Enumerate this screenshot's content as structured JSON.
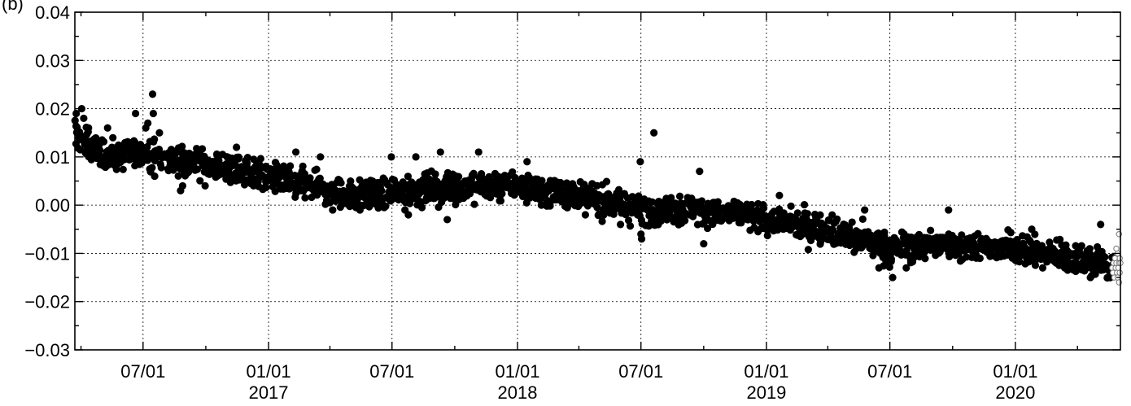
{
  "chart_data": {
    "type": "scatter",
    "title": "",
    "xlabel": "",
    "ylabel": "(b)",
    "xlim": [
      "2016-03-23",
      "2020-06-03"
    ],
    "ylim": [
      -0.03,
      0.04
    ],
    "grid": true,
    "y_ticks": [
      "0.04",
      "0.03",
      "0.02",
      "0.01",
      "0.00",
      "−0.01",
      "−0.02",
      "−0.03"
    ],
    "y_tick_values": [
      0.04,
      0.03,
      0.02,
      0.01,
      0.0,
      -0.01,
      -0.02,
      -0.03
    ],
    "x_ticks": [
      {
        "date": "2016-07-01",
        "label": "07/01",
        "year": ""
      },
      {
        "date": "2017-01-01",
        "label": "01/01",
        "year": "2017"
      },
      {
        "date": "2017-07-01",
        "label": "07/01",
        "year": ""
      },
      {
        "date": "2018-01-01",
        "label": "01/01",
        "year": "2018"
      },
      {
        "date": "2018-07-01",
        "label": "07/01",
        "year": ""
      },
      {
        "date": "2019-01-01",
        "label": "01/01",
        "year": "2019"
      },
      {
        "date": "2019-07-01",
        "label": "07/01",
        "year": ""
      },
      {
        "date": "2020-01-01",
        "label": "01/01",
        "year": "2020"
      }
    ],
    "minor_x_ticks": [
      "2016-04-01",
      "2016-10-01",
      "2017-04-01",
      "2017-10-01",
      "2018-04-01",
      "2018-10-01",
      "2019-04-01",
      "2019-10-01",
      "2020-04-01"
    ],
    "series": [
      {
        "marker": "filled-circle",
        "color": "#000000",
        "trend": [
          {
            "x": "2016-03-23",
            "y": 0.015
          },
          {
            "x": "2016-05-01",
            "y": 0.01
          },
          {
            "x": "2016-07-01",
            "y": 0.011
          },
          {
            "x": "2016-09-01",
            "y": 0.009
          },
          {
            "x": "2016-12-01",
            "y": 0.007
          },
          {
            "x": "2017-03-01",
            "y": 0.004
          },
          {
            "x": "2017-05-01",
            "y": 0.002
          },
          {
            "x": "2017-08-01",
            "y": 0.003
          },
          {
            "x": "2017-11-01",
            "y": 0.004
          },
          {
            "x": "2018-01-01",
            "y": 0.004
          },
          {
            "x": "2018-04-01",
            "y": 0.002
          },
          {
            "x": "2018-07-01",
            "y": -0.001
          },
          {
            "x": "2018-10-01",
            "y": -0.001
          },
          {
            "x": "2019-01-01",
            "y": -0.003
          },
          {
            "x": "2019-04-01",
            "y": -0.005
          },
          {
            "x": "2019-07-01",
            "y": -0.009
          },
          {
            "x": "2019-10-01",
            "y": -0.008
          },
          {
            "x": "2020-01-01",
            "y": -0.009
          },
          {
            "x": "2020-04-01",
            "y": -0.011
          },
          {
            "x": "2020-05-25",
            "y": -0.013
          }
        ],
        "spread": 0.0022,
        "outliers": [
          {
            "x": "2016-03-25",
            "y": 0.019
          },
          {
            "x": "2016-04-02",
            "y": 0.02
          },
          {
            "x": "2016-04-05",
            "y": 0.018
          },
          {
            "x": "2016-04-12",
            "y": 0.016
          },
          {
            "x": "2016-05-10",
            "y": 0.016
          },
          {
            "x": "2016-06-20",
            "y": 0.019
          },
          {
            "x": "2016-07-05",
            "y": 0.016
          },
          {
            "x": "2016-07-08",
            "y": 0.017
          },
          {
            "x": "2016-07-15",
            "y": 0.023
          },
          {
            "x": "2016-07-16",
            "y": 0.019
          },
          {
            "x": "2016-07-25",
            "y": 0.015
          },
          {
            "x": "2016-07-18",
            "y": 0.006
          },
          {
            "x": "2016-08-25",
            "y": 0.003
          },
          {
            "x": "2016-08-28",
            "y": 0.004
          },
          {
            "x": "2016-09-30",
            "y": 0.004
          },
          {
            "x": "2016-11-15",
            "y": 0.012
          },
          {
            "x": "2016-12-10",
            "y": 0.004
          },
          {
            "x": "2017-02-10",
            "y": 0.011
          },
          {
            "x": "2017-03-18",
            "y": 0.01
          },
          {
            "x": "2017-04-05",
            "y": -0.001
          },
          {
            "x": "2017-05-15",
            "y": -0.001
          },
          {
            "x": "2017-06-30",
            "y": 0.01
          },
          {
            "x": "2017-07-20",
            "y": -0.001
          },
          {
            "x": "2017-07-25",
            "y": -0.002
          },
          {
            "x": "2017-08-05",
            "y": 0.01
          },
          {
            "x": "2017-09-10",
            "y": 0.011
          },
          {
            "x": "2017-09-20",
            "y": -0.003
          },
          {
            "x": "2017-11-05",
            "y": 0.011
          },
          {
            "x": "2018-01-15",
            "y": 0.009
          },
          {
            "x": "2018-02-05",
            "y": 0.0
          },
          {
            "x": "2018-06-01",
            "y": -0.004
          },
          {
            "x": "2018-06-30",
            "y": 0.009
          },
          {
            "x": "2018-07-01",
            "y": -0.006
          },
          {
            "x": "2018-07-02",
            "y": -0.007
          },
          {
            "x": "2018-07-20",
            "y": 0.015
          },
          {
            "x": "2018-09-25",
            "y": 0.007
          },
          {
            "x": "2018-10-01",
            "y": -0.008
          },
          {
            "x": "2019-01-20",
            "y": 0.002
          },
          {
            "x": "2019-05-25",
            "y": -0.001
          },
          {
            "x": "2019-06-15",
            "y": -0.013
          },
          {
            "x": "2019-07-05",
            "y": -0.015
          },
          {
            "x": "2019-07-25",
            "y": -0.013
          },
          {
            "x": "2019-09-25",
            "y": -0.001
          },
          {
            "x": "2020-01-25",
            "y": -0.005
          },
          {
            "x": "2020-02-10",
            "y": -0.013
          },
          {
            "x": "2020-04-20",
            "y": -0.015
          },
          {
            "x": "2020-05-05",
            "y": -0.004
          },
          {
            "x": "2020-05-15",
            "y": -0.015
          }
        ]
      },
      {
        "marker": "open-circle",
        "color": "#808080",
        "points": [
          {
            "x": "2020-05-22",
            "y": -0.013
          },
          {
            "x": "2020-05-23",
            "y": -0.014
          },
          {
            "x": "2020-05-24",
            "y": -0.012
          },
          {
            "x": "2020-05-25",
            "y": -0.015
          },
          {
            "x": "2020-05-26",
            "y": -0.011
          },
          {
            "x": "2020-05-27",
            "y": -0.013
          },
          {
            "x": "2020-05-28",
            "y": -0.012
          },
          {
            "x": "2020-05-29",
            "y": -0.014
          },
          {
            "x": "2020-05-30",
            "y": -0.01
          },
          {
            "x": "2020-05-31",
            "y": -0.013
          },
          {
            "x": "2020-06-01",
            "y": -0.012
          },
          {
            "x": "2020-06-01",
            "y": -0.006
          },
          {
            "x": "2020-06-02",
            "y": -0.011
          },
          {
            "x": "2020-06-02",
            "y": -0.014
          },
          {
            "x": "2020-06-03",
            "y": -0.012
          },
          {
            "x": "2020-05-28",
            "y": -0.009
          },
          {
            "x": "2020-05-30",
            "y": -0.015
          },
          {
            "x": "2020-06-01",
            "y": -0.016
          }
        ]
      }
    ]
  }
}
